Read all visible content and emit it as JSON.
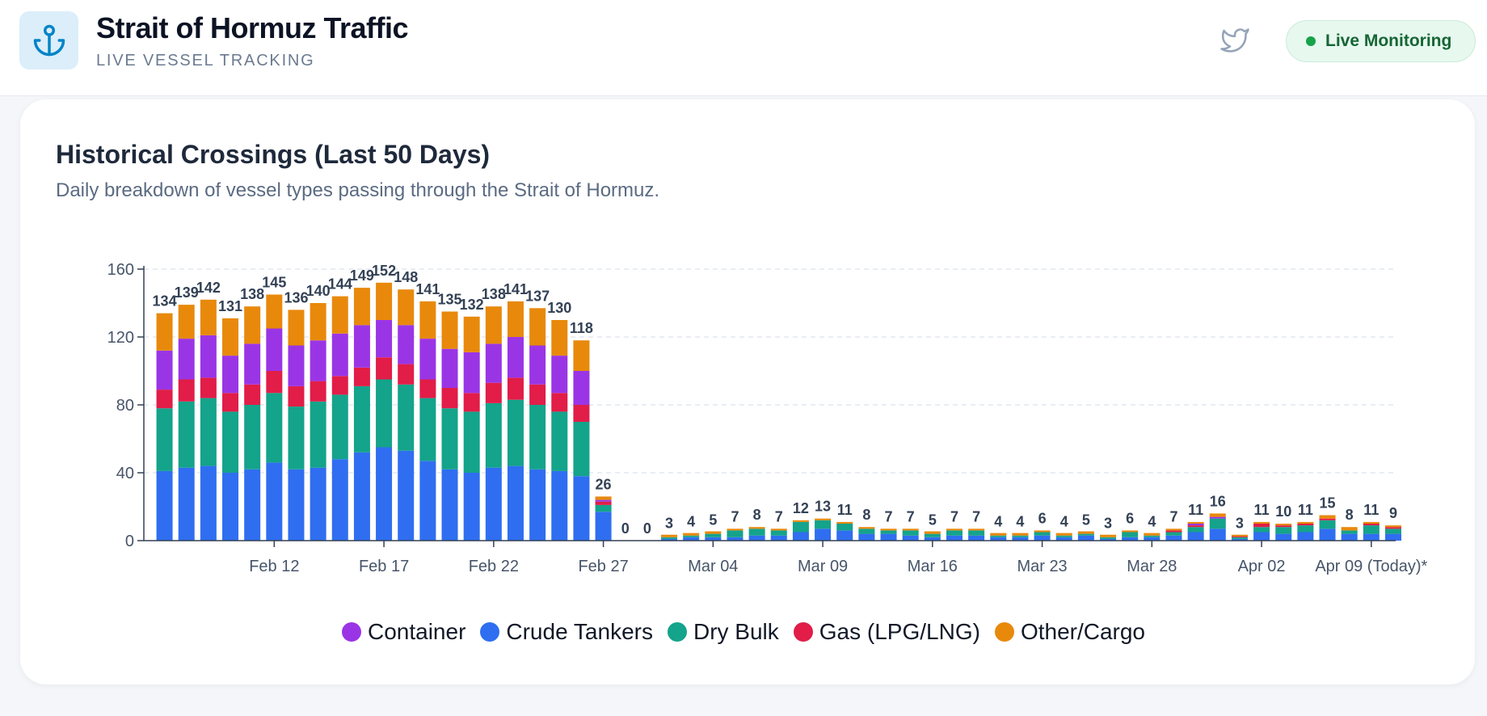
{
  "header": {
    "title": "Strait of Hormuz Traffic",
    "subtitle": "LIVE VESSEL TRACKING",
    "status_label": "Live Monitoring"
  },
  "card": {
    "title": "Historical Crossings (Last 50 Days)",
    "subtitle": "Daily breakdown of vessel types passing through the Strait of Hormuz."
  },
  "colors": {
    "crude": "#2f6ef0",
    "dry_bulk": "#14a38b",
    "gas": "#e11d48",
    "container": "#9a35e6",
    "other": "#e8890c",
    "accent": "#0284c7",
    "live": "#16a34a"
  },
  "chart_data": {
    "type": "bar",
    "stacked": true,
    "ylim": [
      0,
      160
    ],
    "yticks": [
      0,
      40,
      80,
      120,
      160
    ],
    "grid": true,
    "legend_position": "bottom",
    "xtick_labels": [
      {
        "index": 6,
        "label": "Feb 12"
      },
      {
        "index": 11,
        "label": "Feb 17"
      },
      {
        "index": 16,
        "label": "Feb 22"
      },
      {
        "index": 21,
        "label": "Feb 27"
      },
      {
        "index": 26,
        "label": "Mar 04"
      },
      {
        "index": 31,
        "label": "Mar 09"
      },
      {
        "index": 36,
        "label": "Mar 16"
      },
      {
        "index": 41,
        "label": "Mar 23"
      },
      {
        "index": 46,
        "label": "Mar 28"
      },
      {
        "index": 51,
        "label": "Apr 02"
      },
      {
        "index": 56,
        "label": "Apr 09 (Today)*"
      }
    ],
    "totals": [
      134,
      139,
      142,
      131,
      138,
      145,
      136,
      140,
      144,
      149,
      152,
      148,
      141,
      135,
      132,
      138,
      141,
      137,
      130,
      118,
      26,
      0,
      0,
      3,
      4,
      5,
      7,
      8,
      7,
      12,
      13,
      11,
      8,
      7,
      7,
      5,
      7,
      7,
      4,
      4,
      6,
      4,
      5,
      3,
      6,
      4,
      7,
      11,
      16,
      3,
      11,
      10,
      11,
      15,
      8,
      11,
      9
    ],
    "series": [
      {
        "name": "Crude Tankers",
        "key": "crude",
        "values": [
          41,
          43,
          44,
          40,
          42,
          46,
          42,
          43,
          48,
          52,
          55,
          53,
          47,
          42,
          40,
          43,
          44,
          42,
          41,
          38,
          17,
          0,
          0,
          1,
          2,
          2,
          2,
          3,
          3,
          5,
          7,
          6,
          4,
          4,
          3,
          2,
          3,
          3,
          2,
          2,
          3,
          2,
          3,
          1,
          2,
          2,
          3,
          5,
          7,
          1,
          5,
          4,
          5,
          7,
          4,
          4,
          4
        ]
      },
      {
        "name": "Dry Bulk",
        "key": "dry_bulk",
        "values": [
          37,
          39,
          40,
          36,
          38,
          41,
          37,
          39,
          38,
          39,
          40,
          39,
          37,
          36,
          36,
          38,
          39,
          38,
          35,
          32,
          4,
          0,
          0,
          1,
          1,
          2,
          4,
          4,
          3,
          6,
          5,
          4,
          3,
          2,
          3,
          2,
          3,
          3,
          1,
          1,
          2,
          1,
          1,
          1,
          3,
          1,
          2,
          3,
          6,
          1,
          3,
          4,
          4,
          5,
          2,
          5,
          3
        ]
      },
      {
        "name": "Gas (LPG/LNG)",
        "key": "gas",
        "values": [
          11,
          13,
          12,
          11,
          12,
          13,
          12,
          12,
          11,
          11,
          13,
          12,
          11,
          12,
          11,
          12,
          13,
          12,
          11,
          10,
          2,
          0,
          0,
          0,
          0,
          0,
          0,
          0,
          0,
          0,
          0,
          0,
          0,
          0,
          0,
          0,
          0,
          0,
          0,
          0,
          0,
          0,
          0,
          0,
          0,
          0,
          1,
          1,
          0,
          1,
          2,
          1,
          1,
          1,
          0,
          1,
          1
        ]
      },
      {
        "name": "Container",
        "key": "container",
        "values": [
          23,
          24,
          25,
          22,
          24,
          25,
          24,
          24,
          25,
          25,
          22,
          23,
          24,
          23,
          24,
          23,
          24,
          23,
          22,
          20,
          1,
          0,
          0,
          0,
          0,
          0,
          0,
          0,
          0,
          0,
          0,
          0,
          0,
          0,
          0,
          0,
          0,
          0,
          0,
          0,
          0,
          0,
          0,
          0,
          0,
          0,
          0,
          1,
          1,
          0,
          0,
          0,
          0,
          0,
          0,
          0,
          0
        ]
      },
      {
        "name": "Other/Cargo",
        "key": "other",
        "values": [
          22,
          20,
          21,
          22,
          22,
          20,
          21,
          22,
          22,
          22,
          22,
          21,
          22,
          22,
          21,
          22,
          21,
          22,
          21,
          18,
          2,
          0,
          0,
          1,
          1,
          1,
          1,
          1,
          1,
          1,
          1,
          1,
          1,
          1,
          1,
          1,
          1,
          1,
          1,
          1,
          1,
          1,
          1,
          1,
          1,
          1,
          1,
          1,
          2,
          0,
          1,
          1,
          1,
          2,
          2,
          1,
          1
        ]
      }
    ]
  },
  "legend": [
    {
      "label": "Container",
      "color_key": "container"
    },
    {
      "label": "Crude Tankers",
      "color_key": "crude"
    },
    {
      "label": "Dry Bulk",
      "color_key": "dry_bulk"
    },
    {
      "label": "Gas (LPG/LNG)",
      "color_key": "gas"
    },
    {
      "label": "Other/Cargo",
      "color_key": "other"
    }
  ]
}
